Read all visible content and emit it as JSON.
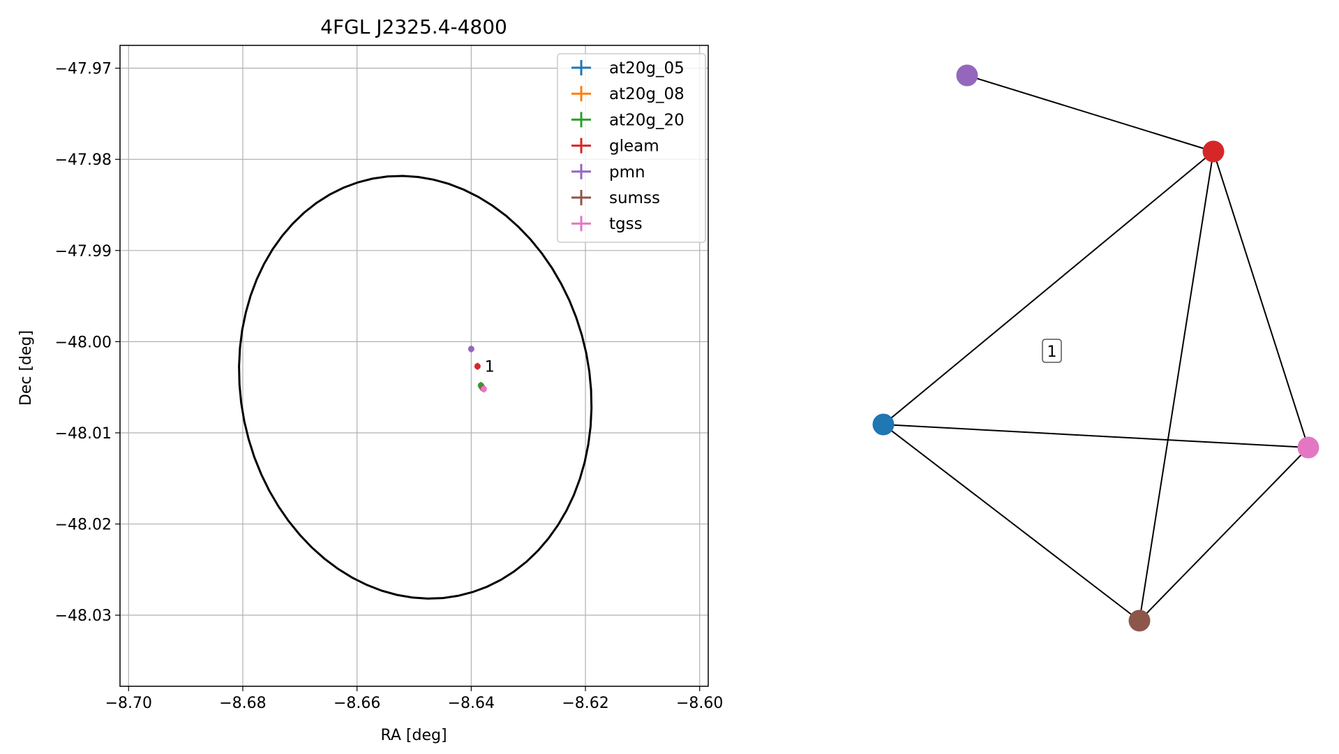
{
  "chart_data": [
    {
      "type": "scatter",
      "title": "4FGL J2325.4-4800",
      "xlabel": "RA [deg]",
      "ylabel": "Dec [deg]",
      "xlim": [
        -8.7015,
        -8.5985
      ],
      "ylim": [
        -48.0378,
        -47.9675
      ],
      "x_ticks": [
        -8.7,
        -8.68,
        -8.66,
        -8.64,
        -8.62,
        -8.6
      ],
      "x_tick_labels": [
        "−8.70",
        "−8.68",
        "−8.66",
        "−8.64",
        "−8.62",
        "−8.60"
      ],
      "y_ticks": [
        -47.97,
        -47.98,
        -47.99,
        -48.0,
        -48.01,
        -48.02,
        -48.03
      ],
      "y_tick_labels": [
        "−47.97",
        "−47.98",
        "−47.99",
        "−48.00",
        "−48.01",
        "−48.02",
        "−48.03"
      ],
      "grid": true,
      "legend_position": "top-right",
      "ellipse": {
        "center": [
          -8.6498,
          -48.005
        ],
        "ra_halfwidth": 0.031,
        "dec_halfheight": 0.023,
        "tilt_deg": -8
      },
      "series": [
        {
          "name": "at20g_05",
          "color": "#1f77b4",
          "x": [
            -8.6382
          ],
          "y": [
            -48.0049
          ]
        },
        {
          "name": "at20g_08",
          "color": "#ff7f0e",
          "x": [
            -8.6381
          ],
          "y": [
            -48.005
          ]
        },
        {
          "name": "at20g_20",
          "color": "#2ca02c",
          "x": [
            -8.6383
          ],
          "y": [
            -48.0048
          ]
        },
        {
          "name": "gleam",
          "color": "#d62728",
          "x": [
            -8.6389
          ],
          "y": [
            -48.0027
          ]
        },
        {
          "name": "pmn",
          "color": "#9467bd",
          "x": [
            -8.64
          ],
          "y": [
            -48.0008
          ]
        },
        {
          "name": "sumss",
          "color": "#8c564b",
          "x": [
            -8.638
          ],
          "y": [
            -48.0051
          ]
        },
        {
          "name": "tgss",
          "color": "#e377c2",
          "x": [
            -8.6378
          ],
          "y": [
            -48.0052
          ]
        }
      ],
      "annotations": [
        {
          "text": "1",
          "x": -8.6386,
          "y": -48.0027
        }
      ]
    },
    {
      "type": "network",
      "nodes": [
        {
          "id": "at20g",
          "color": "#1f77b4"
        },
        {
          "id": "gleam",
          "color": "#d62728"
        },
        {
          "id": "pmn",
          "color": "#9467bd"
        },
        {
          "id": "sumss",
          "color": "#8c564b"
        },
        {
          "id": "tgss",
          "color": "#e377c2"
        }
      ],
      "edges": [
        [
          "pmn",
          "gleam"
        ],
        [
          "gleam",
          "at20g"
        ],
        [
          "gleam",
          "sumss"
        ],
        [
          "gleam",
          "tgss"
        ],
        [
          "at20g",
          "tgss"
        ],
        [
          "at20g",
          "sumss"
        ],
        [
          "sumss",
          "tgss"
        ]
      ],
      "cluster_label": "1"
    }
  ]
}
